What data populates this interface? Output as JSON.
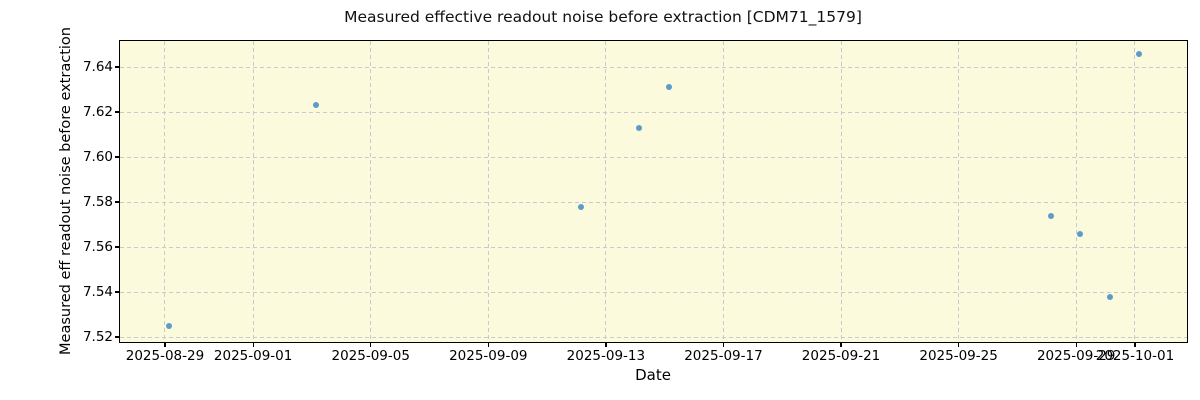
{
  "chart_data": {
    "type": "scatter",
    "title": "Measured effective readout noise before extraction [CDM71_1579]",
    "xlabel": "Date",
    "ylabel": "Measured eff readout noise before extraction",
    "points": [
      {
        "date": "2025-08-29",
        "value": 7.525
      },
      {
        "date": "2025-09-03",
        "value": 7.623
      },
      {
        "date": "2025-09-12",
        "value": 7.578
      },
      {
        "date": "2025-09-14",
        "value": 7.613
      },
      {
        "date": "2025-09-15",
        "value": 7.631
      },
      {
        "date": "2025-09-28",
        "value": 7.574
      },
      {
        "date": "2025-09-29",
        "value": 7.566
      },
      {
        "date": "2025-09-30",
        "value": 7.538
      },
      {
        "date": "2025-10-01",
        "value": 7.646
      }
    ],
    "x_ticks": [
      "2025-08-29",
      "2025-09-01",
      "2025-09-05",
      "2025-09-09",
      "2025-09-13",
      "2025-09-17",
      "2025-09-21",
      "2025-09-25",
      "2025-09-29",
      "2025-10-01"
    ],
    "y_ticks": [
      7.52,
      7.54,
      7.56,
      7.58,
      7.6,
      7.62,
      7.64
    ],
    "x_epoch": "2025-08-29",
    "xlim_days": [
      -1.53,
      34.77
    ],
    "ylim": [
      7.5178,
      7.6516
    ],
    "point_day_fraction": 0.14,
    "grid": true,
    "legend": false,
    "colors": {
      "point": "#5b9cc9",
      "plot_bg": "#fcfadc",
      "grid": "#c9c9ce",
      "spine": "#000000"
    }
  }
}
